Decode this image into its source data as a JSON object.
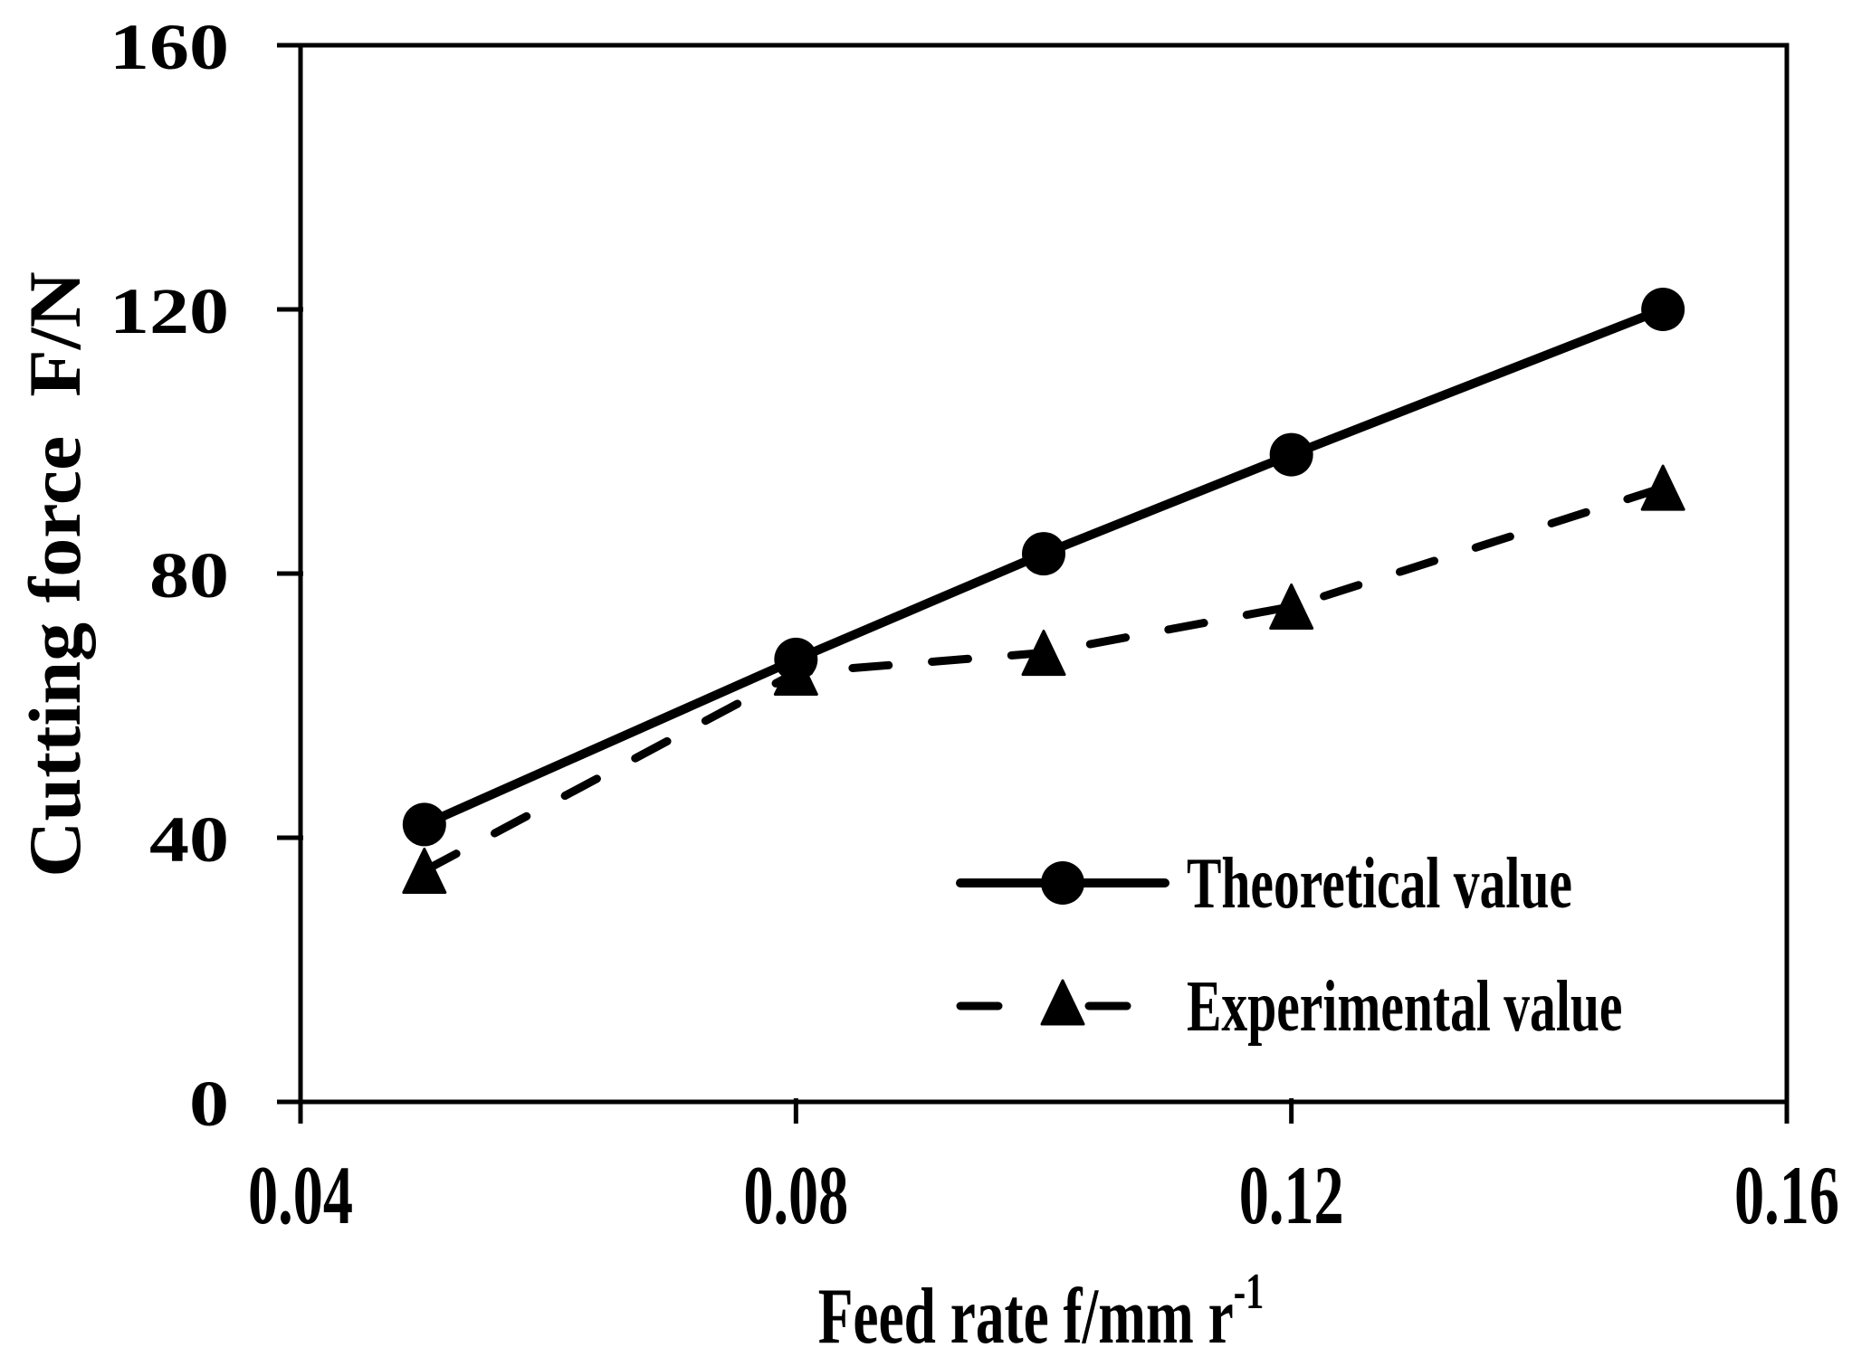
{
  "chart_data": {
    "type": "line",
    "title": "",
    "xlabel": "Feed rate f/mm r",
    "xlabel_superscript": "-1",
    "ylabel": "Cutting force  F/N",
    "xlim": [
      0.04,
      0.16
    ],
    "ylim": [
      0,
      160
    ],
    "xticks": [
      0.04,
      0.08,
      0.12,
      0.16
    ],
    "xtick_labels": [
      "0.04",
      "0.08",
      "0.12",
      "0.16"
    ],
    "yticks": [
      0,
      40,
      80,
      120,
      160
    ],
    "ytick_labels": [
      "0",
      "40",
      "80",
      "120",
      "160"
    ],
    "grid": false,
    "legend_position": "bottom-right",
    "x": [
      0.05,
      0.08,
      0.1,
      0.12,
      0.15
    ],
    "series": [
      {
        "name": "Theoretical value",
        "values": [
          42,
          67,
          83,
          98,
          120
        ],
        "marker": "circle",
        "line_style": "solid",
        "color": "#000000"
      },
      {
        "name": "Experimental value",
        "values": [
          35,
          65,
          68,
          75,
          93
        ],
        "marker": "triangle",
        "line_style": "dashed",
        "color": "#000000"
      }
    ]
  }
}
